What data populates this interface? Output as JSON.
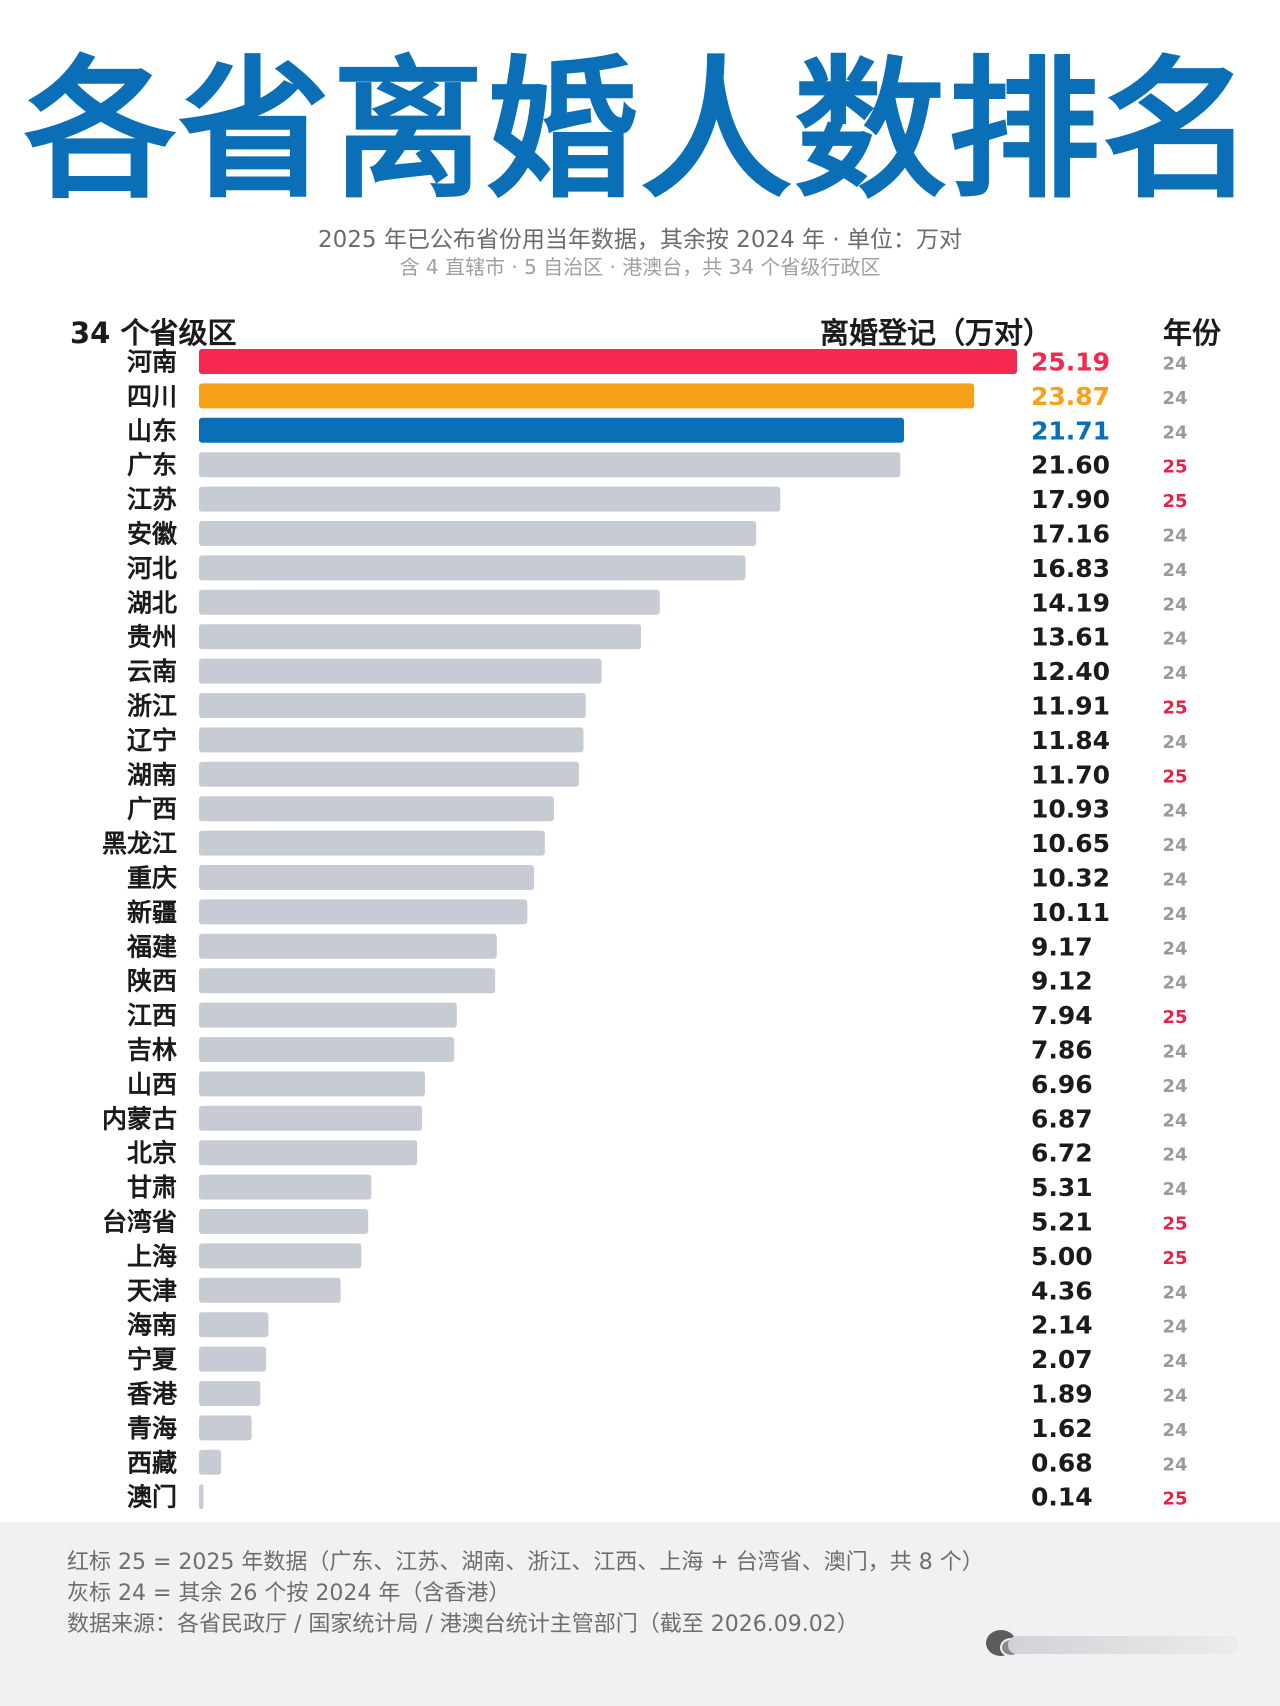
{
  "header": {
    "title": "各省离婚人数排名",
    "subtitle": "2025 年已公布省份用当年数据，其余按 2024 年 · 单位：万对",
    "note": "含 4 直辖市 · 5 自治区 · 港澳台，共 34 个省级行政区"
  },
  "columns": {
    "region": "34 个省级区",
    "value": "离婚登记（万对）",
    "year": "年份"
  },
  "colors": {
    "first": "#f5294f",
    "second": "#f7a11a",
    "third": "#0b6fb8",
    "default_bar": "#c7ccd4",
    "value_text": "#1b1b1b",
    "year_2025": "#e32447",
    "year_2024": "#9a9a9a"
  },
  "chart_data": {
    "type": "bar",
    "orientation": "horizontal",
    "categories": [
      "河南",
      "四川",
      "山东",
      "广东",
      "江苏",
      "安徽",
      "河北",
      "湖北",
      "贵州",
      "云南",
      "浙江",
      "辽宁",
      "湖南",
      "广西",
      "黑龙江",
      "重庆",
      "新疆",
      "福建",
      "陕西",
      "江西",
      "吉林",
      "山西",
      "内蒙古",
      "北京",
      "甘肃",
      "台湾省",
      "上海",
      "天津",
      "海南",
      "宁夏",
      "香港",
      "青海",
      "西藏",
      "澳门"
    ],
    "values": [
      25.19,
      23.87,
      21.71,
      21.6,
      17.9,
      17.16,
      16.83,
      14.19,
      13.61,
      12.4,
      11.91,
      11.84,
      11.7,
      10.93,
      10.65,
      10.32,
      10.11,
      9.17,
      9.12,
      7.94,
      7.86,
      6.96,
      6.87,
      6.72,
      5.31,
      5.21,
      5.0,
      4.36,
      2.14,
      2.07,
      1.89,
      1.62,
      0.68,
      0.14
    ],
    "value_labels": [
      "25.19",
      "23.87",
      "21.71",
      "21.60",
      "17.90",
      "17.16",
      "16.83",
      "14.19",
      "13.61",
      "12.40",
      "11.91",
      "11.84",
      "11.70",
      "10.93",
      "10.65",
      "10.32",
      "10.11",
      "9.17",
      "9.12",
      "7.94",
      "7.86",
      "6.96",
      "6.87",
      "6.72",
      "5.31",
      "5.21",
      "5.00",
      "4.36",
      "2.14",
      "2.07",
      "1.89",
      "1.62",
      "0.68",
      "0.14"
    ],
    "years": [
      "24",
      "24",
      "24",
      "25",
      "25",
      "24",
      "24",
      "24",
      "24",
      "24",
      "25",
      "24",
      "25",
      "24",
      "24",
      "24",
      "24",
      "24",
      "24",
      "25",
      "24",
      "24",
      "24",
      "24",
      "24",
      "25",
      "25",
      "24",
      "24",
      "24",
      "24",
      "24",
      "24",
      "25"
    ],
    "xlim": [
      0,
      25.19
    ],
    "grid": false,
    "legend": "none"
  },
  "footer": {
    "line1": "红标 25 = 2025 年数据（广东、江苏、湖南、浙江、江西、上海 + 台湾省、澳门，共 8 个）",
    "line2": "灰标 24 = 其余 26 个按 2024 年（含香港）",
    "line3": "数据来源：各省民政厅 / 国家统计局 / 港澳台统计主管部门（截至 2026.09.02）"
  }
}
